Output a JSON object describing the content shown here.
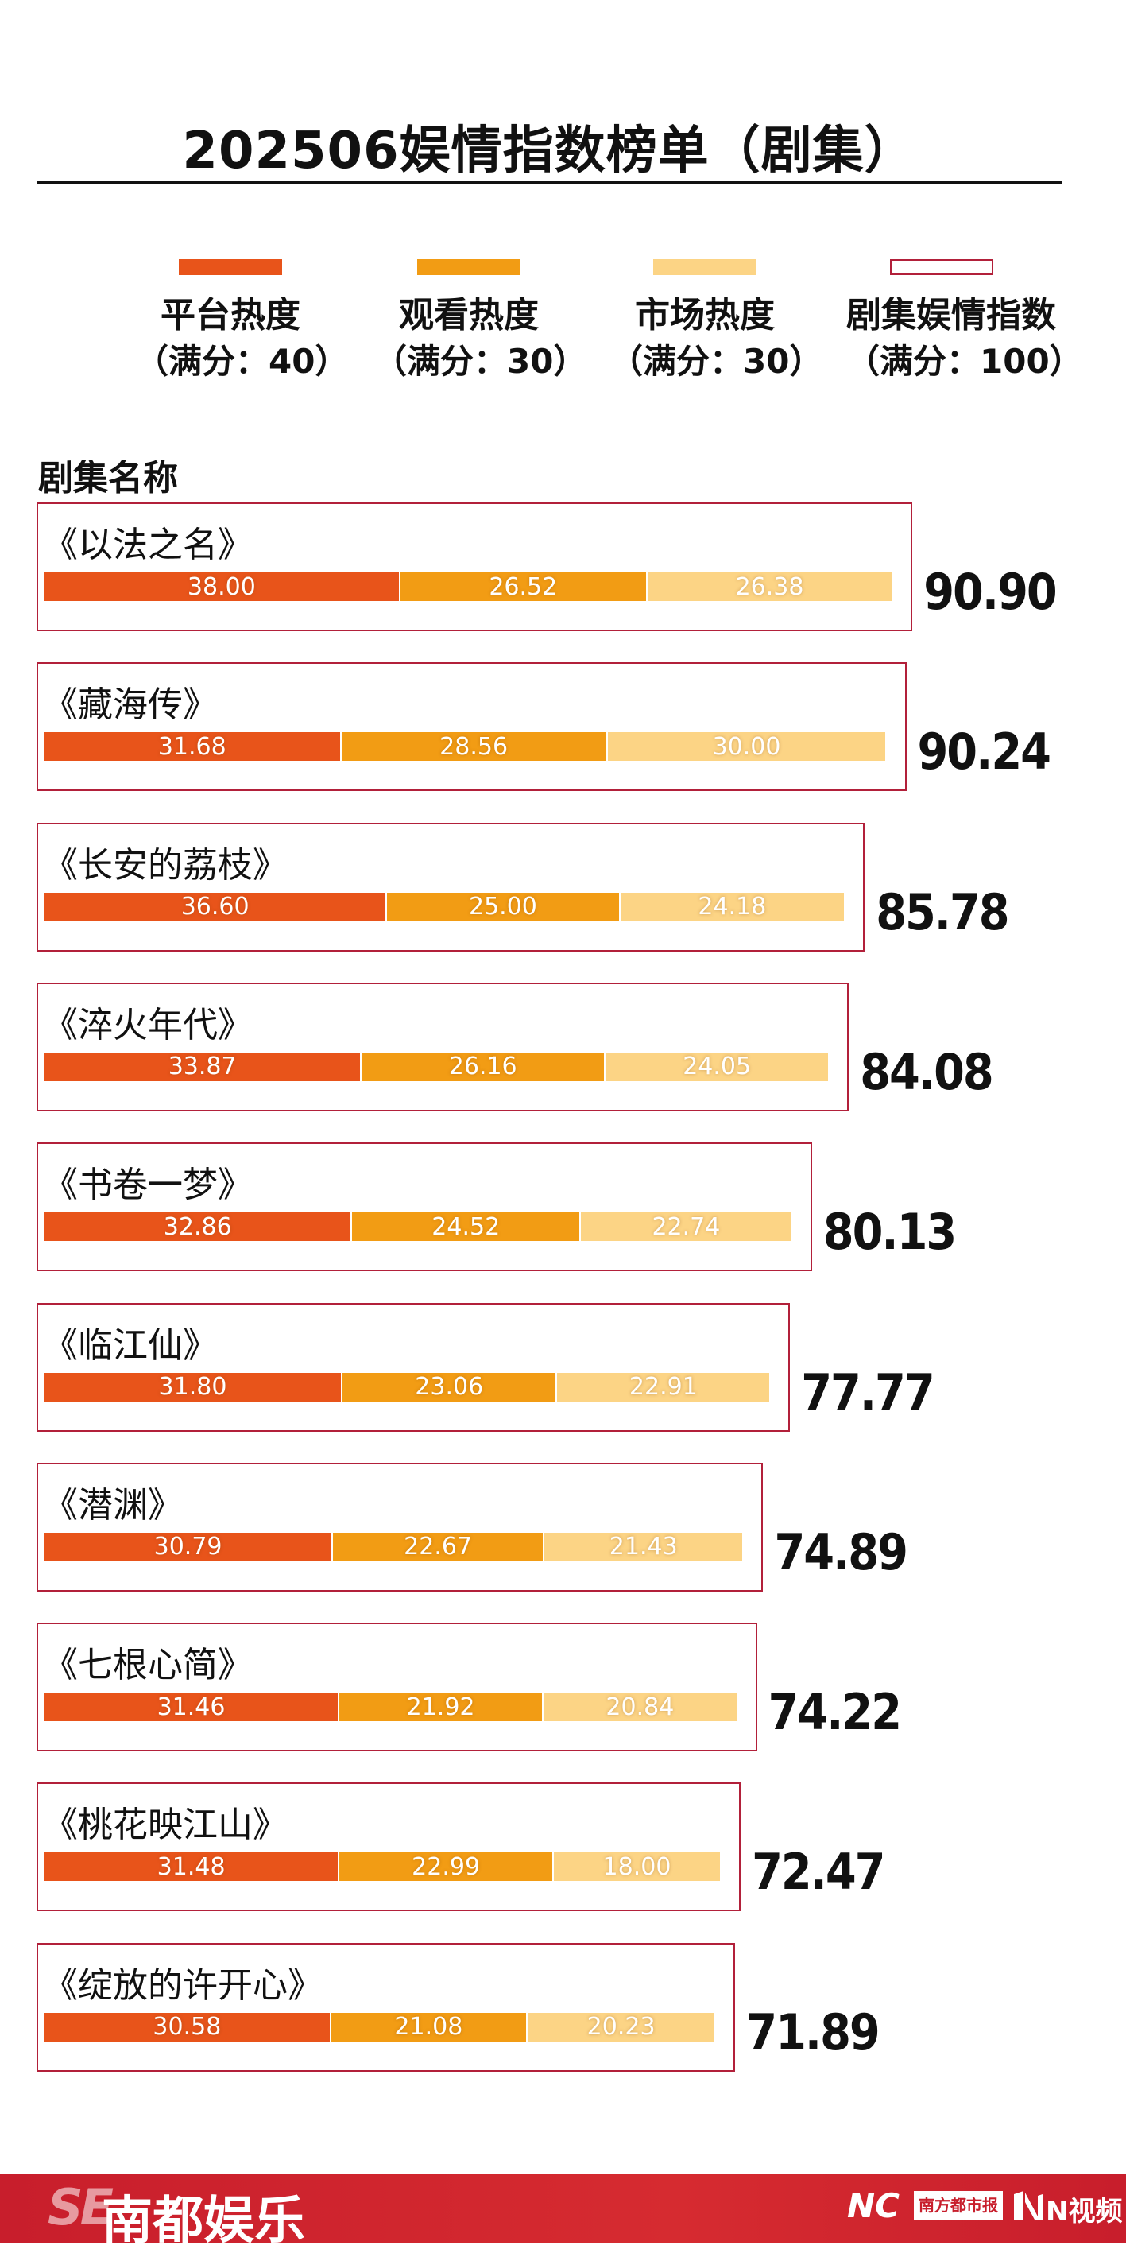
{
  "title": "202506娱情指数榜单（剧集）",
  "legend": [
    {
      "label": "平台热度",
      "sub": "（满分：40）",
      "color": "#e8541a"
    },
    {
      "label": "观看热度",
      "sub": "（满分：30）",
      "color": "#f29c14"
    },
    {
      "label": "市场热度",
      "sub": "（满分：30）",
      "color": "#fcd485"
    },
    {
      "label": "剧集娱情指数",
      "sub": "（满分：100）",
      "color": "#b2203a"
    }
  ],
  "section_label": "剧集名称",
  "chart_data": {
    "type": "bar",
    "stacked": true,
    "orientation": "horizontal",
    "title": "202506娱情指数榜单（剧集）",
    "categories": [
      "《以法之名》",
      "《藏海传》",
      "《长安的荔枝》",
      "《淬火年代》",
      "《书卷一梦》",
      "《临江仙》",
      "《潜渊》",
      "《七根心简》",
      "《桃花映江山》",
      "《绽放的许开心》"
    ],
    "series": [
      {
        "name": "平台热度",
        "values": [
          38.0,
          31.68,
          36.6,
          33.87,
          32.86,
          31.8,
          30.79,
          31.46,
          31.48,
          30.58
        ],
        "labels": [
          "38.00",
          "31.68",
          "36.60",
          "33.87",
          "32.86",
          "31.80",
          "30.79",
          "31.46",
          "31.48",
          "30.58"
        ],
        "color": "#e8541a"
      },
      {
        "name": "观看热度",
        "values": [
          26.52,
          28.56,
          25.0,
          26.16,
          24.52,
          23.06,
          22.67,
          21.92,
          22.99,
          21.08
        ],
        "labels": [
          "26.52",
          "28.56",
          "25.00",
          "26.16",
          "24.52",
          "23.06",
          "22.67",
          "21.92",
          "22.99",
          "21.08"
        ],
        "color": "#f29c14"
      },
      {
        "name": "市场热度",
        "values": [
          26.38,
          30.0,
          24.18,
          24.05,
          22.74,
          22.91,
          21.43,
          20.84,
          18.0,
          20.23
        ],
        "labels": [
          "26.38",
          "30.00",
          "24.18",
          "24.05",
          "22.74",
          "22.91",
          "21.43",
          "20.84",
          "18.00",
          "20.23"
        ],
        "color": "#fcd485"
      }
    ],
    "totals": [
      90.9,
      90.24,
      85.78,
      84.08,
      80.13,
      77.77,
      74.89,
      74.22,
      72.47,
      71.89
    ],
    "total_labels": [
      "90.90",
      "90.24",
      "85.78",
      "84.08",
      "80.13",
      "77.77",
      "74.89",
      "74.22",
      "72.47",
      "71.89"
    ],
    "legend": "top",
    "grid": false
  },
  "footer": {
    "mark": "SE",
    "brand": "南都娱乐",
    "nc": "NC",
    "paper": "南方都市报",
    "video": "N视频",
    "color": "#c81e2c"
  }
}
